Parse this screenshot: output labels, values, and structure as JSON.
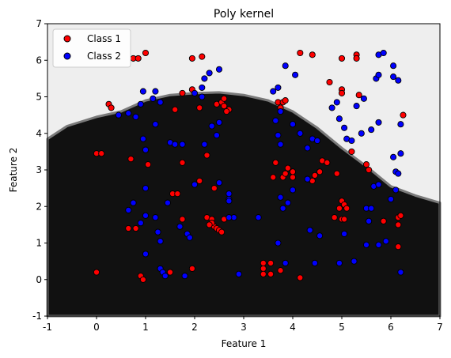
{
  "chart_data": {
    "type": "scatter",
    "title": "Poly kernel",
    "xlabel": "Feature 1",
    "ylabel": "Feature 2",
    "xlim": [
      -1,
      7
    ],
    "ylim": [
      -1,
      7
    ],
    "xticks": [
      "-1",
      "0",
      "1",
      "2",
      "3",
      "4",
      "5",
      "6",
      "7"
    ],
    "yticks": [
      "-1",
      "0",
      "1",
      "2",
      "3",
      "4",
      "5",
      "6",
      "7"
    ],
    "grid": false,
    "legend_position": "top-left",
    "background_regions": {
      "class1_region_color": "#111111",
      "class2_region_color": "#eeeeee",
      "boundary": [
        [
          -1,
          3.85
        ],
        [
          -0.6,
          4.2
        ],
        [
          0,
          4.45
        ],
        [
          0.5,
          4.6
        ],
        [
          1.0,
          4.9
        ],
        [
          1.5,
          5.05
        ],
        [
          2.0,
          5.1
        ],
        [
          2.5,
          5.12
        ],
        [
          3.0,
          5.05
        ],
        [
          3.5,
          4.9
        ],
        [
          4.0,
          4.6
        ],
        [
          4.5,
          4.15
        ],
        [
          5.0,
          3.6
        ],
        [
          5.5,
          3.1
        ],
        [
          6.0,
          2.55
        ],
        [
          6.5,
          2.3
        ],
        [
          7.0,
          2.1
        ]
      ]
    },
    "series": [
      {
        "name": "Class 1",
        "color": "#ff0000",
        "points": [
          [
            0.0,
            0.2
          ],
          [
            0.9,
            0.1
          ],
          [
            0.95,
            0.0
          ],
          [
            1.95,
            0.3
          ],
          [
            1.5,
            0.2
          ],
          [
            3.4,
            0.45
          ],
          [
            3.55,
            0.45
          ],
          [
            3.4,
            0.3
          ],
          [
            3.4,
            0.15
          ],
          [
            3.55,
            0.15
          ],
          [
            4.15,
            0.05
          ],
          [
            0.65,
            1.4
          ],
          [
            0.8,
            1.4
          ],
          [
            1.75,
            1.65
          ],
          [
            2.25,
            1.7
          ],
          [
            2.35,
            1.65
          ],
          [
            2.4,
            1.45
          ],
          [
            2.45,
            1.4
          ],
          [
            2.5,
            1.35
          ],
          [
            2.55,
            1.3
          ],
          [
            2.6,
            1.65
          ],
          [
            2.35,
            1.55
          ],
          [
            2.3,
            1.5
          ],
          [
            1.55,
            2.35
          ],
          [
            1.65,
            2.35
          ],
          [
            2.4,
            2.5
          ],
          [
            2.1,
            2.7
          ],
          [
            1.75,
            3.2
          ],
          [
            2.25,
            3.4
          ],
          [
            0.0,
            3.45
          ],
          [
            0.1,
            3.45
          ],
          [
            0.7,
            3.3
          ],
          [
            1.05,
            3.15
          ],
          [
            3.6,
            2.8
          ],
          [
            3.8,
            2.8
          ],
          [
            3.85,
            2.9
          ],
          [
            3.9,
            3.05
          ],
          [
            4.0,
            2.8
          ],
          [
            4.0,
            2.95
          ],
          [
            4.4,
            2.7
          ],
          [
            4.45,
            2.85
          ],
          [
            4.55,
            2.95
          ],
          [
            4.6,
            3.25
          ],
          [
            4.7,
            3.2
          ],
          [
            4.9,
            2.9
          ],
          [
            3.65,
            3.2
          ],
          [
            5.0,
            2.15
          ],
          [
            4.95,
            1.95
          ],
          [
            5.05,
            2.05
          ],
          [
            5.1,
            1.95
          ],
          [
            4.85,
            1.7
          ],
          [
            5.0,
            1.65
          ],
          [
            5.05,
            1.65
          ],
          [
            5.2,
            3.5
          ],
          [
            5.5,
            3.15
          ],
          [
            5.55,
            3.0
          ],
          [
            5.85,
            1.6
          ],
          [
            6.15,
            1.7
          ],
          [
            6.2,
            1.75
          ],
          [
            6.15,
            1.5
          ],
          [
            6.15,
            0.9
          ],
          [
            0.75,
            6.05
          ],
          [
            0.85,
            6.05
          ],
          [
            1.0,
            6.2
          ],
          [
            1.95,
            6.05
          ],
          [
            2.15,
            6.1
          ],
          [
            1.95,
            5.2
          ],
          [
            1.75,
            5.1
          ],
          [
            2.1,
            4.7
          ],
          [
            1.6,
            4.65
          ],
          [
            2.45,
            4.8
          ],
          [
            2.55,
            4.85
          ],
          [
            2.6,
            4.95
          ],
          [
            2.6,
            4.75
          ],
          [
            2.7,
            4.65
          ],
          [
            2.65,
            4.6
          ],
          [
            0.25,
            4.8
          ],
          [
            0.3,
            4.7
          ],
          [
            3.7,
            4.85
          ],
          [
            3.75,
            4.7
          ],
          [
            3.8,
            4.85
          ],
          [
            3.85,
            4.9
          ],
          [
            4.15,
            6.2
          ],
          [
            4.4,
            6.15
          ],
          [
            4.75,
            5.4
          ],
          [
            5.0,
            5.2
          ],
          [
            5.0,
            5.1
          ],
          [
            5.3,
            6.15
          ],
          [
            5.0,
            6.05
          ],
          [
            5.3,
            6.05
          ],
          [
            5.35,
            5.05
          ],
          [
            6.25,
            4.5
          ],
          [
            3.75,
            0.25
          ]
        ]
      },
      {
        "name": "Class 2",
        "color": "#0000ff",
        "points": [
          [
            1.3,
            0.3
          ],
          [
            1.35,
            0.2
          ],
          [
            1.4,
            0.1
          ],
          [
            1.8,
            0.1
          ],
          [
            2.9,
            0.15
          ],
          [
            1.0,
            0.7
          ],
          [
            1.3,
            1.05
          ],
          [
            1.0,
            1.75
          ],
          [
            1.2,
            1.7
          ],
          [
            1.25,
            1.3
          ],
          [
            1.7,
            1.45
          ],
          [
            1.85,
            1.25
          ],
          [
            1.9,
            1.15
          ],
          [
            2.8,
            1.7
          ],
          [
            2.7,
            1.7
          ],
          [
            0.9,
            1.55
          ],
          [
            0.65,
            1.9
          ],
          [
            0.75,
            2.1
          ],
          [
            1.0,
            2.5
          ],
          [
            1.45,
            2.1
          ],
          [
            2.0,
            2.6
          ],
          [
            2.5,
            2.65
          ],
          [
            2.7,
            2.2
          ],
          [
            2.7,
            2.35
          ],
          [
            2.7,
            2.15
          ],
          [
            1.5,
            3.75
          ],
          [
            1.6,
            3.7
          ],
          [
            1.75,
            3.7
          ],
          [
            0.95,
            3.85
          ],
          [
            1.0,
            3.55
          ],
          [
            1.2,
            4.25
          ],
          [
            2.2,
            3.7
          ],
          [
            2.35,
            4.2
          ],
          [
            2.45,
            3.95
          ],
          [
            2.5,
            4.3
          ],
          [
            0.45,
            4.5
          ],
          [
            0.65,
            4.55
          ],
          [
            0.9,
            4.8
          ],
          [
            0.95,
            5.15
          ],
          [
            1.15,
            4.95
          ],
          [
            1.2,
            5.15
          ],
          [
            2.2,
            5.5
          ],
          [
            2.3,
            5.65
          ],
          [
            2.5,
            5.75
          ],
          [
            3.6,
            5.15
          ],
          [
            3.7,
            5.25
          ],
          [
            3.85,
            5.85
          ],
          [
            4.05,
            5.6
          ],
          [
            3.65,
            4.35
          ],
          [
            3.75,
            4.6
          ],
          [
            3.75,
            3.7
          ],
          [
            3.75,
            2.25
          ],
          [
            3.8,
            1.95
          ],
          [
            3.9,
            2.1
          ],
          [
            4.0,
            2.45
          ],
          [
            4.3,
            2.75
          ],
          [
            3.3,
            1.7
          ],
          [
            3.7,
            1.0
          ],
          [
            3.85,
            0.45
          ],
          [
            4.35,
            1.35
          ],
          [
            4.55,
            1.2
          ],
          [
            4.45,
            0.45
          ],
          [
            4.95,
            0.45
          ],
          [
            5.05,
            1.25
          ],
          [
            5.25,
            0.5
          ],
          [
            5.5,
            1.95
          ],
          [
            5.55,
            1.6
          ],
          [
            5.6,
            1.95
          ],
          [
            5.65,
            2.55
          ],
          [
            5.75,
            2.6
          ],
          [
            5.9,
            1.05
          ],
          [
            6.0,
            2.2
          ],
          [
            5.75,
            0.95
          ],
          [
            6.1,
            2.45
          ],
          [
            6.2,
            0.2
          ],
          [
            6.1,
            2.95
          ],
          [
            6.15,
            2.9
          ],
          [
            6.2,
            3.45
          ],
          [
            6.05,
            3.35
          ],
          [
            4.8,
            4.7
          ],
          [
            4.9,
            4.85
          ],
          [
            4.95,
            4.4
          ],
          [
            5.05,
            4.15
          ],
          [
            5.1,
            3.85
          ],
          [
            5.2,
            3.8
          ],
          [
            5.4,
            4.0
          ],
          [
            5.6,
            4.1
          ],
          [
            5.75,
            4.3
          ],
          [
            5.7,
            5.5
          ],
          [
            5.75,
            5.6
          ],
          [
            5.75,
            6.15
          ],
          [
            5.85,
            6.2
          ],
          [
            6.05,
            5.55
          ],
          [
            6.15,
            5.45
          ],
          [
            6.05,
            5.85
          ],
          [
            6.2,
            4.25
          ],
          [
            5.3,
            4.75
          ],
          [
            5.45,
            4.95
          ],
          [
            4.0,
            4.25
          ],
          [
            4.15,
            4.0
          ],
          [
            4.4,
            3.85
          ],
          [
            4.5,
            3.8
          ],
          [
            4.3,
            3.6
          ],
          [
            3.7,
            3.95
          ],
          [
            5.5,
            0.95
          ],
          [
            2.15,
            5.0
          ],
          [
            2.0,
            5.1
          ],
          [
            2.15,
            5.25
          ],
          [
            1.3,
            4.85
          ],
          [
            0.8,
            4.45
          ]
        ]
      }
    ]
  }
}
